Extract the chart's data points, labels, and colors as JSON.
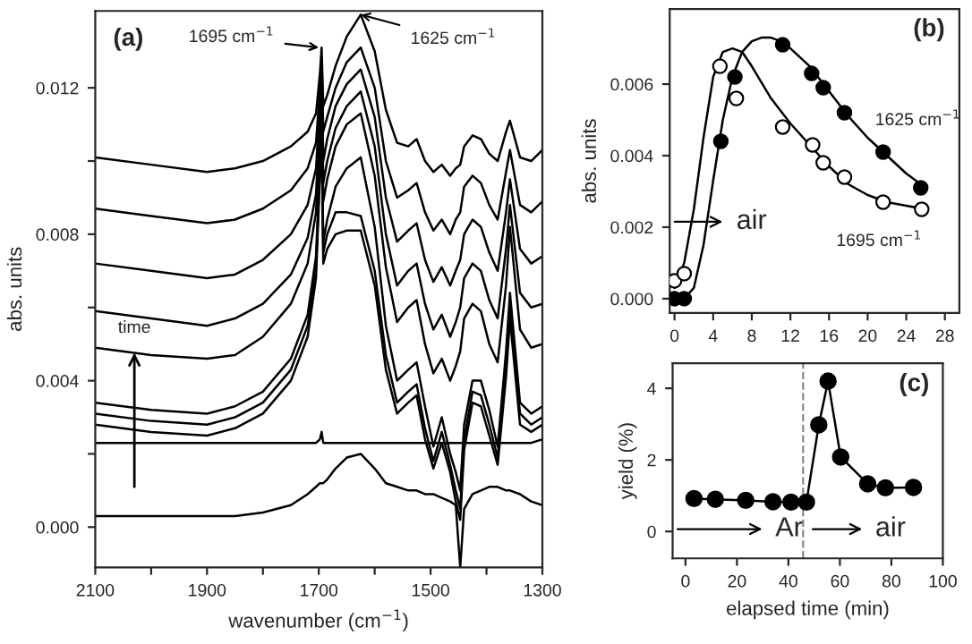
{
  "chart_data": [
    {
      "type": "line",
      "xlabel": "wavenumber (cm$^{−1}$)",
      "ylabel": "abs. units",
      "xlim": [
        2100,
        1300
      ],
      "ylim": [
        -0.0011,
        0.0141
      ],
      "xticks": [
        2100,
        {
          "value": 2000,
          "label": null
        },
        1900,
        {
          "value": 1800,
          "label": null
        },
        1700,
        {
          "value": 1600,
          "label": null
        },
        1500,
        {
          "value": 1400,
          "label": null
        },
        1300
      ],
      "yticks": [
        {
          "value": 0,
          "label": "0.000"
        },
        {
          "value": 0.002,
          "label": null
        },
        {
          "value": 0.004,
          "label": "0.004"
        },
        {
          "value": 0.006,
          "label": null
        },
        {
          "value": 0.008,
          "label": "0.008"
        },
        {
          "value": 0.01,
          "label": null
        },
        {
          "value": 0.012,
          "label": "0.012"
        }
      ],
      "grid": false,
      "marker": "none",
      "line_style": "solid",
      "annotations": [
        "(a)",
        {
          "text": "1695 cm$^{−1}$",
          "x": 1700,
          "y": 0.0131
        },
        {
          "text": "1625 cm$^{−1}$",
          "x": 1625,
          "y": 0.014
        },
        {
          "text": "time",
          "x": 2030,
          "y": 0.0049
        }
      ],
      "x": [
        2100,
        2000,
        1900,
        1850,
        1800,
        1750,
        1720,
        1705,
        1698,
        1695,
        1692,
        1685,
        1670,
        1650,
        1625,
        1600,
        1580,
        1560,
        1540,
        1525,
        1510,
        1495,
        1480,
        1465,
        1455,
        1447,
        1440,
        1425,
        1410,
        1395,
        1380,
        1365,
        1358,
        1340,
        1320,
        1300
      ],
      "series": [
        {
          "color": "#000000",
          "values": [
            0.0101,
            0.0099,
            0.0097,
            0.0098,
            0.01,
            0.0104,
            0.0108,
            0.0113,
            0.0124,
            0.0131,
            0.0115,
            0.0118,
            0.0126,
            0.0134,
            0.014,
            0.013,
            0.0114,
            0.0105,
            0.0104,
            0.0106,
            0.01,
            0.0097,
            0.0099,
            0.0096,
            0.0098,
            0.0099,
            0.0104,
            0.0107,
            0.0106,
            0.0102,
            0.01,
            0.0108,
            0.0111,
            0.0101,
            0.01,
            0.0103
          ]
        },
        {
          "color": "#000000",
          "values": [
            0.0087,
            0.0085,
            0.0083,
            0.0084,
            0.0087,
            0.0092,
            0.0098,
            0.0105,
            0.012,
            0.0128,
            0.0108,
            0.0112,
            0.012,
            0.0127,
            0.0131,
            0.012,
            0.01,
            0.009,
            0.0092,
            0.0094,
            0.0086,
            0.0081,
            0.0084,
            0.008,
            0.0084,
            0.0086,
            0.0093,
            0.0096,
            0.0094,
            0.0088,
            0.0084,
            0.0097,
            0.0103,
            0.0088,
            0.0086,
            0.0089
          ]
        },
        {
          "color": "#000000",
          "values": [
            0.0072,
            0.007,
            0.0068,
            0.0069,
            0.0073,
            0.008,
            0.0088,
            0.0098,
            0.0116,
            0.0125,
            0.01,
            0.0106,
            0.0115,
            0.0121,
            0.0125,
            0.0112,
            0.009,
            0.0078,
            0.0081,
            0.0083,
            0.0073,
            0.0067,
            0.0071,
            0.0066,
            0.007,
            0.0073,
            0.008,
            0.0084,
            0.0082,
            0.0075,
            0.007,
            0.0086,
            0.0095,
            0.0076,
            0.0072,
            0.0074
          ]
        },
        {
          "color": "#000000",
          "values": [
            0.0059,
            0.0057,
            0.0055,
            0.0057,
            0.0061,
            0.0069,
            0.0079,
            0.0091,
            0.0112,
            0.0122,
            0.0094,
            0.01,
            0.0109,
            0.0115,
            0.0119,
            0.0104,
            0.008,
            0.0066,
            0.007,
            0.0072,
            0.0061,
            0.0054,
            0.0058,
            0.0052,
            0.0056,
            0.006,
            0.0068,
            0.0072,
            0.007,
            0.0062,
            0.0057,
            0.0076,
            0.0088,
            0.0064,
            0.006,
            0.0061
          ]
        },
        {
          "color": "#000000",
          "values": [
            0.0049,
            0.0047,
            0.0046,
            0.0047,
            0.0052,
            0.0061,
            0.0072,
            0.0086,
            0.0109,
            0.012,
            0.0089,
            0.0095,
            0.0104,
            0.011,
            0.0113,
            0.0096,
            0.0071,
            0.0056,
            0.006,
            0.0062,
            0.005,
            0.0042,
            0.0046,
            0.004,
            0.0044,
            0.0048,
            0.0057,
            0.0061,
            0.0059,
            0.005,
            0.0045,
            0.0066,
            0.0082,
            0.0054,
            0.0049,
            0.005
          ]
        },
        {
          "color": "#000000",
          "values": [
            0.0034,
            0.0032,
            0.0031,
            0.0033,
            0.0037,
            0.0046,
            0.0058,
            0.0074,
            0.01,
            0.0112,
            0.0078,
            0.0084,
            0.0093,
            0.0098,
            0.0101,
            0.0082,
            0.0055,
            0.004,
            0.0043,
            0.0045,
            0.0033,
            0.0022,
            0.003,
            0.002,
            0.0015,
            0.001,
            0.0028,
            0.004,
            0.004,
            0.0032,
            0.0022,
            0.0048,
            0.0064,
            0.0034,
            0.0031,
            0.0033
          ]
        },
        {
          "color": "#000000",
          "values": [
            0.0031,
            0.0029,
            0.0028,
            0.003,
            0.0034,
            0.0043,
            0.0055,
            0.0071,
            0.0098,
            0.011,
            0.0075,
            0.008,
            0.0086,
            0.0086,
            0.0085,
            0.007,
            0.0047,
            0.0034,
            0.0037,
            0.0039,
            0.0027,
            0.0018,
            0.0026,
            0.0017,
            0.001,
            0.0005,
            0.0024,
            0.0037,
            0.0036,
            0.0028,
            0.0019,
            0.0044,
            0.006,
            0.0031,
            0.0028,
            0.003
          ]
        },
        {
          "color": "#000000",
          "values": [
            0.0028,
            0.0026,
            0.0025,
            0.0027,
            0.0031,
            0.004,
            0.0052,
            0.0068,
            0.0096,
            0.0108,
            0.0072,
            0.0076,
            0.008,
            0.0081,
            0.0081,
            0.0066,
            0.0043,
            0.0031,
            0.0034,
            0.0036,
            0.0024,
            0.0016,
            0.0023,
            0.0015,
            0.0007,
            0.0002,
            0.0021,
            0.0034,
            0.0033,
            0.0025,
            0.0017,
            0.0041,
            0.0057,
            0.0028,
            0.0026,
            0.0028
          ]
        },
        {
          "color": "#000000",
          "values": [
            0.0023,
            0.0023,
            0.0023,
            0.0023,
            0.0023,
            0.0023,
            0.0023,
            0.0023,
            0.0024,
            0.0026,
            0.0023,
            0.0023,
            0.0023,
            0.0023,
            0.0023,
            0.0023,
            0.0023,
            0.0023,
            0.0023,
            0.0023,
            0.0023,
            0.0023,
            0.0023,
            0.0023,
            0.0023,
            0.0023,
            0.0023,
            0.0023,
            0.0023,
            0.0023,
            0.0023,
            0.0023,
            0.0023,
            0.0023,
            0.0023,
            0.0024
          ]
        },
        {
          "color": "#000000",
          "values": [
            0.0003,
            0.0003,
            0.0003,
            0.0003,
            0.0004,
            0.0006,
            0.0009,
            0.0011,
            0.0012,
            0.0012,
            0.0012,
            0.0013,
            0.0016,
            0.0019,
            0.002,
            0.0016,
            0.0012,
            0.0011,
            0.001,
            0.001,
            0.0009,
            0.0009,
            0.0008,
            0.0007,
            0.0006,
            -0.0011,
            0.0005,
            0.0009,
            0.001,
            0.0011,
            0.0011,
            0.001,
            0.001,
            0.0009,
            0.0007,
            0.0006
          ]
        }
      ]
    },
    {
      "type": "scatter",
      "ylabel": "abs. units",
      "xlim": [
        -0.5,
        29.5
      ],
      "ylim": [
        -0.0004,
        0.0081
      ],
      "xticks": [
        0,
        4,
        8,
        12,
        16,
        20,
        24,
        28
      ],
      "yticks": [
        {
          "value": 0,
          "label": "0.000"
        },
        {
          "value": 0.002,
          "label": "0.002"
        },
        {
          "value": 0.004,
          "label": "0.004"
        },
        {
          "value": 0.006,
          "label": "0.006"
        }
      ],
      "grid": false,
      "marker": "circle",
      "annotations": [
        "(b)",
        "air"
      ],
      "series": [
        {
          "name": "1625 cm$^{−1}$",
          "color": "#000000",
          "x": [
            0,
            1.0,
            4.8,
            6.25,
            11.2,
            14.2,
            15.4,
            17.6,
            21.6,
            25.5
          ],
          "values": [
            0.0,
            0.0,
            0.0044,
            0.0062,
            0.0071,
            0.0063,
            0.0059,
            0.0052,
            0.0041,
            0.0031
          ]
        },
        {
          "name": "1695 cm$^{−1}$",
          "color": "#ffffff",
          "x": [
            0,
            1.0,
            4.7,
            6.4,
            11.2,
            14.3,
            15.4,
            17.6,
            21.6,
            25.6
          ],
          "values": [
            0.0005,
            0.0007,
            0.0065,
            0.0056,
            0.0048,
            0.0043,
            0.0038,
            0.0034,
            0.0027,
            0.0025
          ]
        },
        {
          "type": "line",
          "marker": "none",
          "color": "#000000",
          "x": [
            1,
            2,
            3,
            4,
            5,
            6,
            7,
            8,
            9,
            10,
            11,
            12,
            14,
            16,
            18,
            20,
            22,
            24,
            26
          ],
          "values": [
            0.0,
            0.0003,
            0.0015,
            0.0033,
            0.005,
            0.0062,
            0.0069,
            0.0072,
            0.0073,
            0.0073,
            0.0072,
            0.007,
            0.0065,
            0.0058,
            0.0051,
            0.0045,
            0.004,
            0.0035,
            0.0031
          ]
        },
        {
          "type": "line",
          "marker": "none",
          "color": "#000000",
          "x": [
            0,
            1,
            2,
            3,
            4,
            5,
            6,
            7,
            8,
            10,
            12,
            14,
            16,
            18,
            20,
            22,
            24,
            26
          ],
          "values": [
            0.0003,
            0.001,
            0.0025,
            0.0045,
            0.0062,
            0.0069,
            0.007,
            0.0069,
            0.0065,
            0.0056,
            0.0049,
            0.0043,
            0.0037,
            0.0032,
            0.0029,
            0.0027,
            0.0026,
            0.0025
          ]
        }
      ]
    },
    {
      "type": "line",
      "xlabel": "elapsed time (min)",
      "ylabel": "yield (%)",
      "xlim": [
        -5,
        100
      ],
      "ylim": [
        -0.75,
        4.7
      ],
      "xticks": [
        0,
        20,
        40,
        60,
        80,
        100
      ],
      "yticks": [
        0,
        2,
        4
      ],
      "grid": false,
      "marker": "circle",
      "line_style": "solid",
      "ref_lines": [
        {
          "axis": "x",
          "value": 45.7,
          "color": "#888888",
          "line_style": "dashed"
        }
      ],
      "annotations": [
        "(c)",
        "Ar",
        "air"
      ],
      "x": [
        3.3,
        11.6,
        23.4,
        34,
        41,
        47,
        51.8,
        55.4,
        60.3,
        70.8,
        77.7,
        88.6
      ],
      "series": [
        {
          "color": "#000000",
          "values": [
            0.92,
            0.9,
            0.87,
            0.83,
            0.82,
            0.82,
            2.98,
            4.2,
            2.08,
            1.33,
            1.22,
            1.23
          ]
        }
      ]
    }
  ]
}
